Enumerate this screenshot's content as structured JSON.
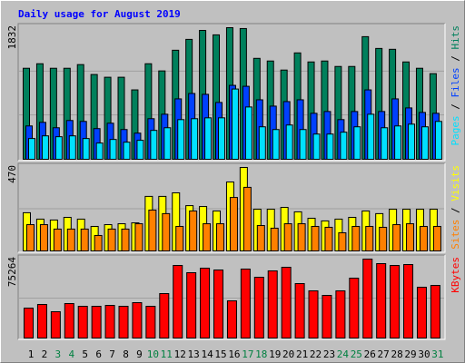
{
  "chart_data": [
    {
      "type": "bar",
      "title": "Daily usage for August 2019",
      "title_color": "#0000ff",
      "ylim": [
        0,
        1832
      ],
      "yticks": [
        1832
      ],
      "grid": true,
      "legend_separator": " / ",
      "series": [
        {
          "name": "Hits",
          "color": "#00805c",
          "values": [
            1267,
            1330,
            1267,
            1267,
            1318,
            1180,
            1142,
            1142,
            966,
            1330,
            1230,
            1518,
            1669,
            1794,
            1732,
            1832,
            1820,
            1405,
            1368,
            1242,
            1481,
            1355,
            1368,
            1292,
            1292,
            1707,
            1543,
            1531,
            1355,
            1267,
            1192
          ]
        },
        {
          "name": "Files",
          "color": "#0040ff",
          "values": [
            464,
            514,
            439,
            540,
            527,
            427,
            502,
            414,
            364,
            565,
            627,
            841,
            916,
            904,
            791,
            1029,
            1016,
            828,
            740,
            803,
            828,
            640,
            665,
            552,
            665,
            966,
            665,
            841,
            715,
            652,
            640
          ]
        },
        {
          "name": "Pages",
          "color": "#00e0ff",
          "values": [
            289,
            326,
            314,
            326,
            289,
            226,
            276,
            238,
            264,
            402,
            439,
            552,
            565,
            577,
            577,
            978,
            728,
            452,
            414,
            477,
            414,
            351,
            351,
            377,
            452,
            627,
            439,
            464,
            489,
            452,
            527
          ]
        }
      ]
    },
    {
      "type": "bar",
      "ylim": [
        0,
        470
      ],
      "yticks": [
        470
      ],
      "grid": true,
      "legend_separator": " / ",
      "series": [
        {
          "name": "Visits",
          "color": "#ffff00",
          "values": [
            215,
            179,
            174,
            189,
            179,
            138,
            148,
            153,
            158,
            307,
            307,
            327,
            255,
            250,
            225,
            388,
            470,
            235,
            235,
            245,
            220,
            184,
            169,
            179,
            189,
            225,
            210,
            235,
            235,
            235,
            235
          ]
        },
        {
          "name": "Sites",
          "color": "#ff8000",
          "values": [
            148,
            148,
            123,
            123,
            123,
            87,
            123,
            123,
            153,
            230,
            210,
            138,
            225,
            153,
            153,
            301,
            358,
            143,
            128,
            153,
            153,
            138,
            133,
            102,
            138,
            138,
            133,
            148,
            153,
            138,
            138
          ]
        }
      ]
    },
    {
      "type": "bar",
      "ylim": [
        0,
        75264
      ],
      "yticks": [
        75264
      ],
      "grid": true,
      "categories": [
        "1",
        "2",
        "3",
        "4",
        "5",
        "6",
        "7",
        "8",
        "9",
        "10",
        "11",
        "12",
        "13",
        "14",
        "15",
        "16",
        "17",
        "18",
        "19",
        "20",
        "21",
        "22",
        "23",
        "24",
        "25",
        "26",
        "27",
        "28",
        "29",
        "30",
        "31"
      ],
      "category_colors": [
        "#000000",
        "#000000",
        "#008040",
        "#008040",
        "#000000",
        "#000000",
        "#000000",
        "#000000",
        "#000000",
        "#008040",
        "#008040",
        "#000000",
        "#000000",
        "#000000",
        "#000000",
        "#000000",
        "#008040",
        "#008040",
        "#000000",
        "#000000",
        "#000000",
        "#000000",
        "#000000",
        "#008040",
        "#008040",
        "#000000",
        "#000000",
        "#000000",
        "#000000",
        "#000000",
        "#008040"
      ],
      "series": [
        {
          "name": "KBytes",
          "color": "#ff0000",
          "values": [
            28548,
            32008,
            25088,
            32873,
            30278,
            30278,
            31143,
            30278,
            33738,
            30278,
            42389,
            69208,
            62287,
            66612,
            64882,
            35468,
            65747,
            57961,
            64017,
            67477,
            51905,
            44984,
            40659,
            44984,
            57096,
            75264,
            70938,
            69208,
            70073,
            48445,
            50175
          ]
        }
      ]
    }
  ]
}
